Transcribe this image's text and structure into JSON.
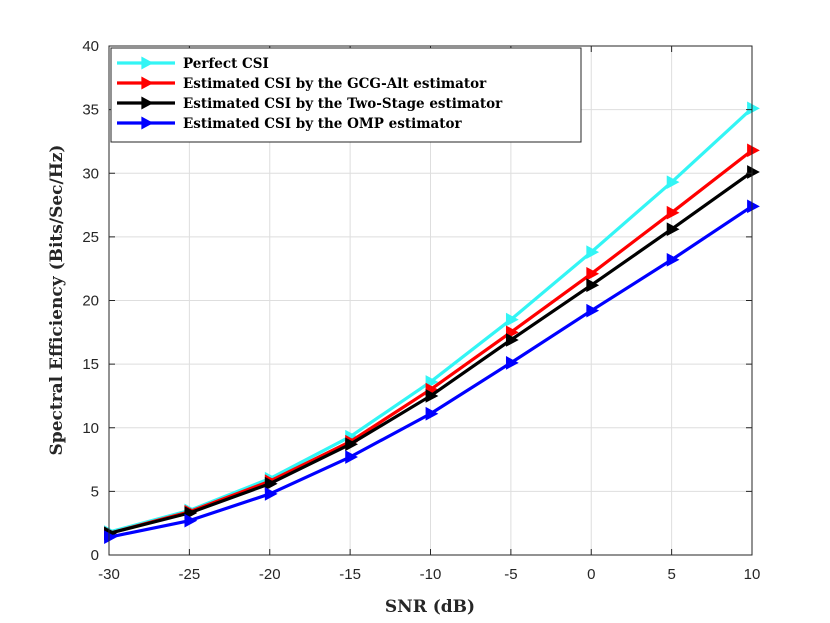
{
  "chart_data": {
    "type": "line",
    "xlabel": "SNR (dB)",
    "ylabel": "Spectral Efficiency (Bits/Sec/Hz)",
    "xlim": [
      -30,
      10
    ],
    "ylim": [
      0,
      40
    ],
    "xticks": [
      -30,
      -25,
      -20,
      -15,
      -10,
      -5,
      0,
      5,
      10
    ],
    "yticks": [
      0,
      5,
      10,
      15,
      20,
      25,
      30,
      35,
      40
    ],
    "x": [
      -30,
      -25,
      -20,
      -15,
      -10,
      -5,
      0,
      5,
      10
    ],
    "grid": true,
    "legend_position": "top-left",
    "series": [
      {
        "name": "Perfect CSI",
        "color": "#33f5f5",
        "marker": "triangle-right",
        "values": [
          1.8,
          3.5,
          6.0,
          9.3,
          13.6,
          18.5,
          23.8,
          29.3,
          35.1
        ]
      },
      {
        "name": "Estimated CSI by the GCG-Alt estimator",
        "color": "#ff0000",
        "marker": "triangle-right",
        "values": [
          1.7,
          3.4,
          5.8,
          8.9,
          13.0,
          17.5,
          22.1,
          26.9,
          31.8
        ]
      },
      {
        "name": "Estimated CSI by the Two-Stage estimator",
        "color": "#000000",
        "marker": "triangle-right",
        "values": [
          1.7,
          3.3,
          5.6,
          8.7,
          12.5,
          16.9,
          21.2,
          25.6,
          30.1
        ]
      },
      {
        "name": "Estimated CSI by the OMP estimator",
        "color": "#0000ff",
        "marker": "triangle-right",
        "values": [
          1.4,
          2.7,
          4.8,
          7.7,
          11.1,
          15.1,
          19.2,
          23.2,
          27.4
        ]
      }
    ]
  }
}
